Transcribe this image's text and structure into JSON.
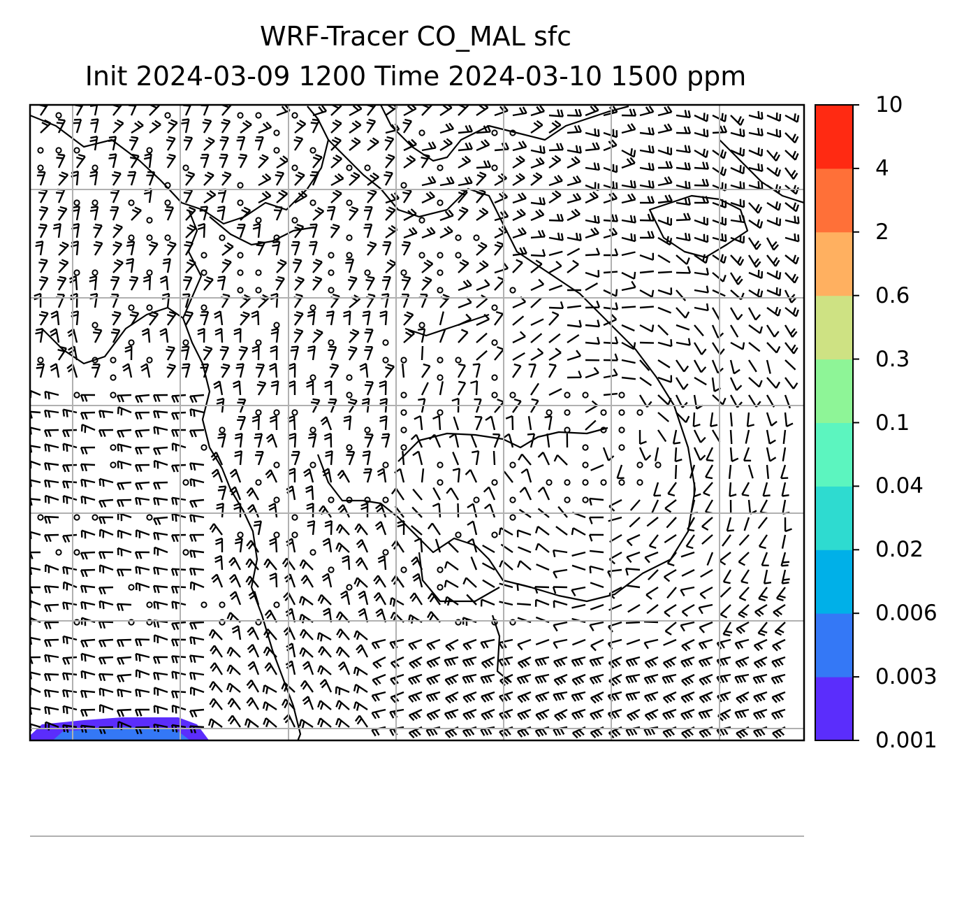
{
  "title": {
    "line1": "WRF-Tracer CO_MAL sfc",
    "line2": "Init 2024-03-09 1200 Time 2024-03-10 1500 ppm"
  },
  "colorbar": {
    "levels": [
      {
        "label": "0.001",
        "color": "#5b2dfc"
      },
      {
        "label": "0.003",
        "color": "#3478f6"
      },
      {
        "label": "0.006",
        "color": "#00b0e8"
      },
      {
        "label": "0.02",
        "color": "#2edbd0"
      },
      {
        "label": "0.04",
        "color": "#5cf5bf"
      },
      {
        "label": "0.1",
        "color": "#8ef597"
      },
      {
        "label": "0.3",
        "color": "#cee283"
      },
      {
        "label": "0.6",
        "color": "#ffb060"
      },
      {
        "label": "2",
        "color": "#ff7038"
      },
      {
        "label": "4",
        "color": "#ff2a12"
      },
      {
        "label": "10",
        "color": null
      }
    ]
  },
  "map": {
    "gridline_color": "#b0b0b0",
    "coastline_color": "#000000",
    "wind_barbs": "black",
    "tracer_plume_region": "bottom-left"
  }
}
